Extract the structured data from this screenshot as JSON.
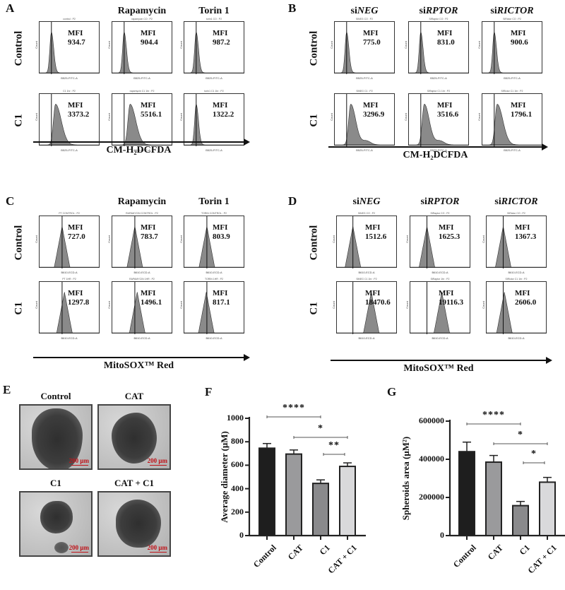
{
  "panels": {
    "A": {
      "letter": "A",
      "columns": [
        "",
        "Rapamycin",
        "Torin 1"
      ],
      "rows": [
        "Control",
        "C1"
      ],
      "axis_title": "CM-H₂DCFDA",
      "x_channel": "B525-FITC-A",
      "y_label": "Count",
      "gates": [
        [
          "control : P2",
          "rapamycin CO : P2",
          "torin1 CO : P2"
        ],
        [
          "C1 1hr : P2",
          "rapamycin C1 1hr : P2",
          "torin1 C1 1hr : P2"
        ]
      ],
      "mfi": [
        [
          "934.7",
          "904.4",
          "987.2"
        ],
        [
          "3373.2",
          "5516.1",
          "1322.2"
        ]
      ]
    },
    "B": {
      "letter": "B",
      "columns": [
        "si",
        "si",
        "si"
      ],
      "columns_italic": [
        "NEG",
        "RPTOR",
        "RICTOR"
      ],
      "rows": [
        "Control",
        "C1"
      ],
      "axis_title": "CM-H₂DCFDA",
      "x_channel": "B525-FITC-A",
      "y_label": "Count",
      "gates": [
        [
          "SiNEG CO : P2",
          "SiRaptor CO : P2",
          "SiRictor CO : P2"
        ],
        [
          "SiNEG C1 : P2",
          "SiRaptor C1 1hr : P2",
          "SiRictor C1 1hr : P2"
        ]
      ],
      "mfi": [
        [
          "775.0",
          "831.0",
          "900.6"
        ],
        [
          "3296.9",
          "3516.6",
          "1796.1"
        ]
      ]
    },
    "C": {
      "letter": "C",
      "columns": [
        "",
        "Rapamycin",
        "Torin 1"
      ],
      "rows": [
        "Control",
        "C1"
      ],
      "axis_title": "MitoSOX™ Red",
      "x_channel": "B610-ECD-A",
      "y_label": "Count",
      "gates": [
        [
          "PT CONTROL : P2",
          "RAPAMYCIN CONTROL : P2",
          "TORIN CONTROL : P2"
        ],
        [
          "PT 1HR : P2",
          "RAPAMYCIN 1HR : P2",
          "TORIN 1HR : P2"
        ]
      ],
      "mfi": [
        [
          "727.0",
          "783.7",
          "803.9"
        ],
        [
          "1297.8",
          "1496.1",
          "817.1"
        ]
      ]
    },
    "D": {
      "letter": "D",
      "columns": [
        "si",
        "si",
        "si"
      ],
      "columns_italic": [
        "NEG",
        "RPTOR",
        "RICTOR"
      ],
      "rows": [
        "Control",
        "C1"
      ],
      "axis_title": "MitoSOX™ Red",
      "x_channel": "B610-ECD-A",
      "y_label": "Count",
      "gates": [
        [
          "SiNEG CO : P2",
          "SiRaptor CO : P2",
          "SiRictor CO : P2"
        ],
        [
          "SiNEG C1 1hr : P2",
          "SiRaptor 1hr : P2",
          "SiRictor C1 1hr : P2"
        ]
      ],
      "mfi": [
        [
          "1512.6",
          "1625.3",
          "1367.3"
        ],
        [
          "18470.6",
          "19116.3",
          "2606.0"
        ]
      ]
    },
    "E": {
      "letter": "E",
      "images": [
        {
          "title": "Control",
          "scale": "200 μm"
        },
        {
          "title": "CAT",
          "scale": "200 μm"
        },
        {
          "title": "C1",
          "scale": "200 μm"
        },
        {
          "title": "CAT + C1",
          "scale": "200 μm"
        }
      ]
    },
    "F": {
      "letter": "F"
    },
    "G": {
      "letter": "G"
    }
  },
  "chart_data": [
    {
      "panel": "F",
      "type": "bar",
      "title": "",
      "categories": [
        "Control",
        "CAT",
        "C1",
        "CAT + C1"
      ],
      "values": [
        745,
        695,
        445,
        590
      ],
      "errors": [
        40,
        35,
        30,
        30
      ],
      "colors": [
        "#1e1e1e",
        "#9a9a9c",
        "#8a8a8c",
        "#d9d9db"
      ],
      "xlabel": "",
      "ylabel": "Average diameter (μM)",
      "ylim": [
        0,
        1000
      ],
      "yticks": [
        "0",
        "200",
        "400",
        "600",
        "800",
        "1000"
      ],
      "significance": [
        {
          "from": 0,
          "to": 2,
          "label": "****"
        },
        {
          "from": 1,
          "to": 3,
          "label": "*"
        },
        {
          "from": 2,
          "to": 3,
          "label": "**"
        }
      ]
    },
    {
      "panel": "G",
      "type": "bar",
      "title": "",
      "categories": [
        "Control",
        "CAT",
        "C1",
        "CAT + C1"
      ],
      "values": [
        440000,
        385000,
        157000,
        280000
      ],
      "errors": [
        50000,
        35000,
        22000,
        25000
      ],
      "colors": [
        "#1e1e1e",
        "#9a9a9c",
        "#8a8a8c",
        "#d9d9db"
      ],
      "xlabel": "",
      "ylabel": "Spheroids area (μM²)",
      "ylim": [
        0,
        600000
      ],
      "yticks": [
        "0",
        "200000",
        "400000",
        "600000"
      ],
      "significance": [
        {
          "from": 0,
          "to": 2,
          "label": "****"
        },
        {
          "from": 1,
          "to": 3,
          "label": "*"
        },
        {
          "from": 2,
          "to": 3,
          "label": "*"
        }
      ]
    }
  ]
}
